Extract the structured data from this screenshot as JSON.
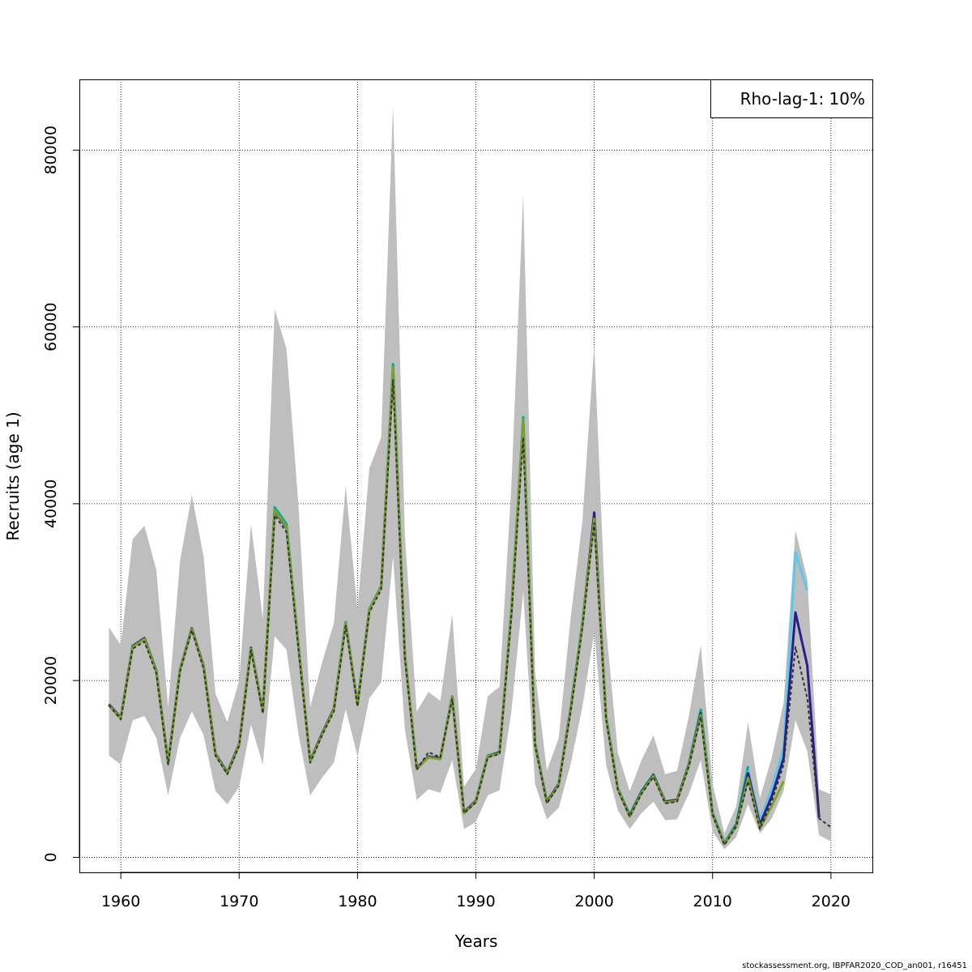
{
  "chart_data": {
    "type": "line",
    "title": "",
    "xlabel": "Years",
    "ylabel": "Recruits (age 1)",
    "xlim": [
      1956.5,
      2023.5
    ],
    "ylim": [
      -1700,
      88000
    ],
    "x_ticks": [
      1960,
      1970,
      1980,
      1990,
      2000,
      2010,
      2020
    ],
    "y_ticks": [
      0,
      20000,
      40000,
      60000,
      80000
    ],
    "grid": true,
    "legend": {
      "position": "top-right",
      "text": "Rho-lag-1: 10%"
    },
    "confidence_band": {
      "x": [
        1959,
        1960,
        1961,
        1962,
        1963,
        1964,
        1965,
        1966,
        1967,
        1968,
        1969,
        1970,
        1971,
        1972,
        1973,
        1974,
        1975,
        1976,
        1977,
        1978,
        1979,
        1980,
        1981,
        1982,
        1983,
        1984,
        1985,
        1986,
        1987,
        1988,
        1989,
        1990,
        1991,
        1992,
        1993,
        1994,
        1995,
        1996,
        1997,
        1998,
        1999,
        2000,
        2001,
        2002,
        2003,
        2004,
        2005,
        2006,
        2007,
        2008,
        2009,
        2010,
        2011,
        2012,
        2013,
        2014,
        2015,
        2016,
        2017,
        2018,
        2019,
        2020
      ],
      "lower": [
        11500,
        10500,
        15500,
        16000,
        13500,
        7000,
        13500,
        16500,
        13800,
        7500,
        6000,
        8000,
        15000,
        10500,
        25000,
        23500,
        14000,
        7000,
        9000,
        10700,
        16800,
        11400,
        18000,
        19800,
        34000,
        14500,
        6500,
        7700,
        7300,
        11000,
        3200,
        4000,
        7000,
        7600,
        16500,
        30000,
        8300,
        4300,
        5600,
        10500,
        17000,
        25500,
        10500,
        5300,
        3200,
        5000,
        6300,
        4200,
        4300,
        7200,
        11000,
        2900,
        900,
        2300,
        6000,
        2700,
        4400,
        7500,
        15500,
        12000,
        2500,
        1800
      ],
      "upper": [
        26000,
        24000,
        36000,
        37500,
        32500,
        17000,
        33500,
        41000,
        34000,
        18500,
        15300,
        20000,
        37700,
        27000,
        62000,
        57500,
        40000,
        17000,
        22000,
        26500,
        42000,
        28000,
        44000,
        47500,
        85000,
        36500,
        16500,
        18700,
        17700,
        27500,
        8000,
        10000,
        18200,
        19300,
        42000,
        75000,
        21000,
        9800,
        13500,
        27000,
        38000,
        58000,
        26000,
        11800,
        7500,
        11000,
        13800,
        9400,
        9800,
        16000,
        24000,
        8300,
        2700,
        5800,
        15300,
        6700,
        11300,
        17500,
        37000,
        31500,
        7700,
        7100
      ]
    },
    "series": [
      {
        "name": "",
        "color": "#00ad9a",
        "x": [
          1959,
          1960,
          1961,
          1962,
          1963,
          1964,
          1965,
          1966,
          1967,
          1968,
          1969,
          1970,
          1971,
          1972,
          1973,
          1974,
          1975,
          1976,
          1977,
          1978,
          1979,
          1980,
          1981,
          1982,
          1983,
          1984,
          1985,
          1986,
          1987,
          1988,
          1989,
          1990,
          1991,
          1992,
          1993,
          1994,
          1995,
          1996,
          1997,
          1998,
          1999,
          2000,
          2001,
          2002,
          2003,
          2004,
          2005,
          2006,
          2007,
          2008,
          2009,
          2010,
          2011,
          2012,
          2013
        ],
        "values": [
          17300,
          15800,
          23900,
          24800,
          21100,
          10700,
          21200,
          25900,
          21600,
          11700,
          9600,
          12800,
          23700,
          16500,
          39600,
          37700,
          24100,
          10900,
          14000,
          16800,
          26600,
          17300,
          28100,
          30700,
          55800,
          23000,
          10100,
          11300,
          11200,
          18200,
          5100,
          6400,
          11500,
          11900,
          28000,
          49800,
          12900,
          6300,
          8300,
          16800,
          26500,
          38500,
          16000,
          7800,
          4800,
          7500,
          9400,
          6300,
          6500,
          10600,
          16700,
          5000,
          1600,
          3800,
          10300
        ]
      },
      {
        "name": "",
        "color": "#1a66c8",
        "x": [
          2013,
          2014,
          2015,
          2016
        ],
        "values": [
          9800,
          4100,
          7700,
          12300
        ]
      },
      {
        "name": "",
        "color": "#5ec8e8",
        "x": [
          2013,
          2014,
          2015,
          2016,
          2017,
          2018
        ],
        "values": [
          9800,
          4100,
          7700,
          12300,
          34500,
          30200
        ]
      },
      {
        "name": "",
        "color": "#2e1d86",
        "x": [
          1959,
          1960,
          1961,
          1962,
          1963,
          1964,
          1965,
          1966,
          1967,
          1968,
          1969,
          1970,
          1971,
          1972,
          1973,
          1974,
          1975,
          1976,
          1977,
          1978,
          1979,
          1980,
          1981,
          1982,
          1983,
          1984,
          1985,
          1986,
          1987,
          1988,
          1989,
          1990,
          1991,
          1992,
          1993,
          1994,
          1995,
          1996,
          1997,
          1998,
          1999,
          2000,
          2001,
          2002,
          2003,
          2004,
          2005,
          2006,
          2007,
          2008,
          2009,
          2010,
          2011,
          2012,
          2013,
          2014,
          2015,
          2016,
          2017,
          2018,
          2019
        ],
        "values": [
          17300,
          15800,
          23900,
          24800,
          21100,
          10700,
          21200,
          25900,
          21600,
          11700,
          9600,
          12800,
          23700,
          16500,
          39200,
          37300,
          24000,
          10900,
          14000,
          16800,
          26500,
          17300,
          28000,
          30600,
          55200,
          22800,
          10100,
          11400,
          11200,
          18100,
          5100,
          6400,
          11400,
          11900,
          27700,
          49300,
          12800,
          6300,
          8300,
          16700,
          26300,
          39000,
          15800,
          7700,
          4700,
          7400,
          9300,
          6300,
          6500,
          10500,
          16300,
          4900,
          1500,
          3600,
          9500,
          3700,
          6900,
          11200,
          27700,
          21700,
          4500
        ]
      },
      {
        "name": "",
        "color": "#7aa428",
        "x": [
          1959,
          1960,
          1961,
          1962,
          1963,
          1964,
          1965,
          1966,
          1967,
          1968,
          1969,
          1970,
          1971,
          1972,
          1973,
          1974,
          1975,
          1976,
          1977,
          1978,
          1979,
          1980,
          1981,
          1982,
          1983,
          1984,
          1985,
          1986,
          1987,
          1988,
          1989,
          1990,
          1991,
          1992,
          1993,
          1994,
          1995,
          1996,
          1997,
          1998,
          1999,
          2000,
          2001,
          2002,
          2003,
          2004,
          2005,
          2006,
          2007,
          2008,
          2009,
          2010,
          2011,
          2012,
          2013,
          2014,
          2015,
          2016
        ],
        "values": [
          17200,
          15700,
          23800,
          24700,
          21000,
          10600,
          21100,
          25800,
          21500,
          11600,
          9500,
          12700,
          23600,
          16400,
          39300,
          37400,
          24000,
          10800,
          13900,
          16700,
          26500,
          17200,
          28000,
          30600,
          55400,
          22900,
          10000,
          11300,
          11100,
          18100,
          5000,
          6300,
          11400,
          11800,
          27800,
          49500,
          12700,
          6200,
          8200,
          16600,
          26300,
          38300,
          15800,
          7700,
          4600,
          7300,
          9200,
          6200,
          6400,
          10400,
          16100,
          4800,
          1500,
          3500,
          9000,
          3300,
          5800,
          8600
        ]
      },
      {
        "name": "",
        "color": "#333333",
        "dashed": true,
        "x": [
          1959,
          1960,
          1961,
          1962,
          1963,
          1964,
          1965,
          1966,
          1967,
          1968,
          1969,
          1970,
          1971,
          1972,
          1973,
          1974,
          1975,
          1976,
          1977,
          1978,
          1979,
          1980,
          1981,
          1982,
          1983,
          1984,
          1985,
          1986,
          1987,
          1988,
          1989,
          1990,
          1991,
          1992,
          1993,
          1994,
          1995,
          1996,
          1997,
          1998,
          1999,
          2000,
          2001,
          2002,
          2003,
          2004,
          2005,
          2006,
          2007,
          2008,
          2009,
          2010,
          2011,
          2012,
          2013,
          2014,
          2015,
          2016,
          2017,
          2018,
          2019,
          2020
        ],
        "values": [
          17200,
          15600,
          23600,
          24400,
          20800,
          10500,
          21000,
          25700,
          21300,
          11500,
          9400,
          12600,
          23400,
          16300,
          38700,
          36800,
          23700,
          10700,
          13800,
          16500,
          26200,
          17100,
          27700,
          30300,
          54000,
          22600,
          9900,
          11900,
          11300,
          17900,
          5000,
          6200,
          11300,
          11700,
          27300,
          47500,
          12600,
          6100,
          8100,
          16400,
          26000,
          37800,
          15600,
          7600,
          4600,
          7200,
          9100,
          6100,
          6300,
          10300,
          15900,
          4800,
          1400,
          3500,
          8600,
          3200,
          6300,
          10500,
          23800,
          18000,
          4400,
          3400
        ]
      }
    ]
  },
  "footer": "stockassessment.org, IBPFAR2020_COD_an001, r16451"
}
